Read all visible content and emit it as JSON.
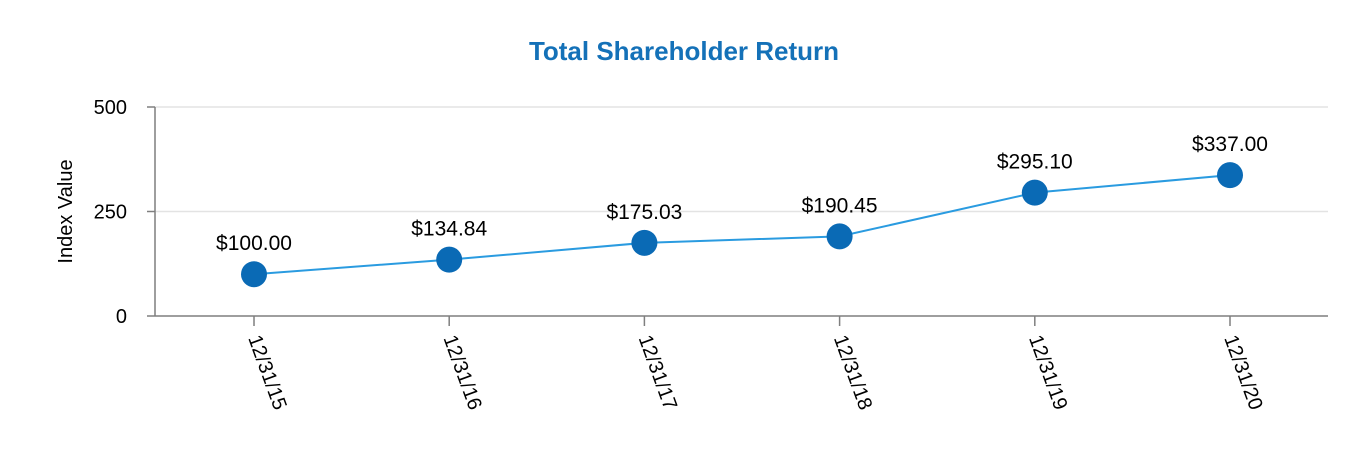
{
  "chart_data": {
    "type": "line",
    "title": "Total Shareholder Return",
    "xlabel": "",
    "ylabel": "Index Value",
    "categories": [
      "12/31/15",
      "12/31/16",
      "12/31/17",
      "12/31/18",
      "12/31/19",
      "12/31/20"
    ],
    "series": [
      {
        "values": [
          100.0,
          134.84,
          175.03,
          190.45,
          295.1,
          337.0
        ],
        "labels": [
          "$100.00",
          "$134.84",
          "$175.03",
          "$190.45",
          "$295.10",
          "$337.00"
        ]
      }
    ],
    "ylim": [
      0,
      500
    ],
    "yticks": [
      0,
      250,
      500
    ],
    "ytick_labels": [
      "0",
      "250",
      "500"
    ],
    "grid": true,
    "legend": "none",
    "colors": {
      "title": "#1471b8",
      "line": "#2a9be0",
      "marker": "#0a6ab5",
      "grid": "#e3e3e3",
      "axis": "#7f7f7f"
    }
  }
}
